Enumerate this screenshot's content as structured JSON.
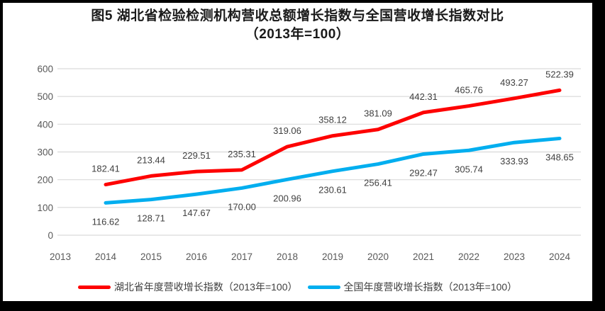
{
  "figure": {
    "frame_border_color": "#000000",
    "background_color": "#FFFFFF"
  },
  "colors": {
    "gridline": "#D9D9D9",
    "axis_text": "#595959",
    "data_label_text": "#404040",
    "title_text": "#1A1A1A"
  },
  "chart_data": {
    "type": "line",
    "title": "图5 湖北省检验检测机构营收总额增长指数与全国营收增长指数对比",
    "subtitle": "（2013年=100）",
    "categories": [
      "2013",
      "2014",
      "2015",
      "2016",
      "2017",
      "2018",
      "2019",
      "2020",
      "2021",
      "2022",
      "2023",
      "2024"
    ],
    "y_ticks": [
      0,
      100,
      200,
      300,
      400,
      500,
      600
    ],
    "ylim": [
      0,
      600
    ],
    "grid": true,
    "legend_position": "bottom",
    "series": [
      {
        "name": "湖北省年度营收增长指数（2013年=100）",
        "color": "#FE0000",
        "start_category_index": 1,
        "label_position": "above",
        "values": [
          182.41,
          213.44,
          229.51,
          235.31,
          319.06,
          358.12,
          381.09,
          442.31,
          465.76,
          493.27,
          522.39
        ]
      },
      {
        "name": "全国年度营收增长指数（2013年=100）",
        "color": "#00AEEF",
        "start_category_index": 1,
        "label_position": "below",
        "values": [
          116.62,
          128.71,
          147.67,
          170.0,
          200.96,
          230.61,
          256.41,
          292.47,
          305.74,
          333.93,
          348.65
        ]
      }
    ]
  }
}
